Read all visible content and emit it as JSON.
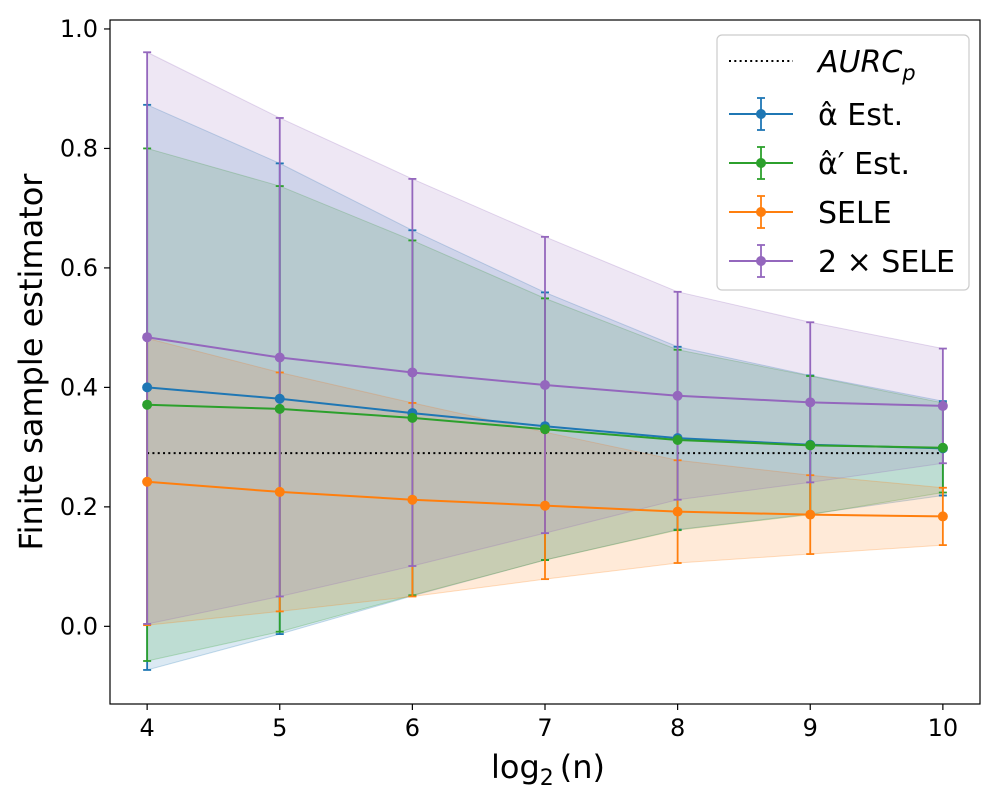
{
  "chart_data": {
    "type": "line",
    "title": "",
    "xlabel": "log",
    "xlabel_sub": "2",
    "xlabel_arg": "(n)",
    "ylabel": "Finite sample estimator",
    "x": [
      4,
      5,
      6,
      7,
      8,
      9,
      10
    ],
    "xlim": [
      3.72,
      10.28
    ],
    "ylim": [
      -0.13,
      1.015
    ],
    "xticks": [
      "4",
      "5",
      "6",
      "7",
      "8",
      "9",
      "10"
    ],
    "yticks": [
      "0.0",
      "0.2",
      "0.4",
      "0.6",
      "0.8",
      "1.0"
    ],
    "ytick_values": [
      0.0,
      0.2,
      0.4,
      0.6,
      0.8,
      1.0
    ],
    "reference": {
      "name": "AURC",
      "name_sub": "p",
      "value": 0.29,
      "color": "#000000",
      "style": "dotted"
    },
    "legend_position": "top-right",
    "series": [
      {
        "name": "α̂ Est.",
        "color": "#1f77b4",
        "values": [
          0.4,
          0.381,
          0.357,
          0.335,
          0.315,
          0.304,
          0.298
        ],
        "lower": [
          -0.073,
          -0.013,
          0.051,
          0.111,
          0.162,
          0.188,
          0.219
        ],
        "upper": [
          0.873,
          0.775,
          0.663,
          0.559,
          0.468,
          0.42,
          0.377
        ]
      },
      {
        "name": "α̂′ Est.",
        "color": "#2ca02c",
        "values": [
          0.371,
          0.364,
          0.349,
          0.33,
          0.312,
          0.303,
          0.299
        ],
        "lower": [
          -0.058,
          -0.009,
          0.052,
          0.111,
          0.161,
          0.187,
          0.224
        ],
        "upper": [
          0.8,
          0.737,
          0.646,
          0.549,
          0.463,
          0.419,
          0.374
        ]
      },
      {
        "name": "SELE",
        "color": "#ff7f0e",
        "values": [
          0.242,
          0.225,
          0.212,
          0.202,
          0.192,
          0.187,
          0.184
        ],
        "lower": [
          0.002,
          0.025,
          0.05,
          0.079,
          0.106,
          0.121,
          0.136
        ],
        "upper": [
          0.482,
          0.425,
          0.374,
          0.325,
          0.278,
          0.253,
          0.232
        ]
      },
      {
        "name": "2 × SELE",
        "color": "#9467bd",
        "values": [
          0.484,
          0.45,
          0.425,
          0.404,
          0.386,
          0.375,
          0.369
        ],
        "lower": [
          0.004,
          0.05,
          0.101,
          0.156,
          0.212,
          0.241,
          0.273
        ],
        "upper": [
          0.961,
          0.851,
          0.749,
          0.652,
          0.56,
          0.509,
          0.465
        ]
      }
    ]
  }
}
